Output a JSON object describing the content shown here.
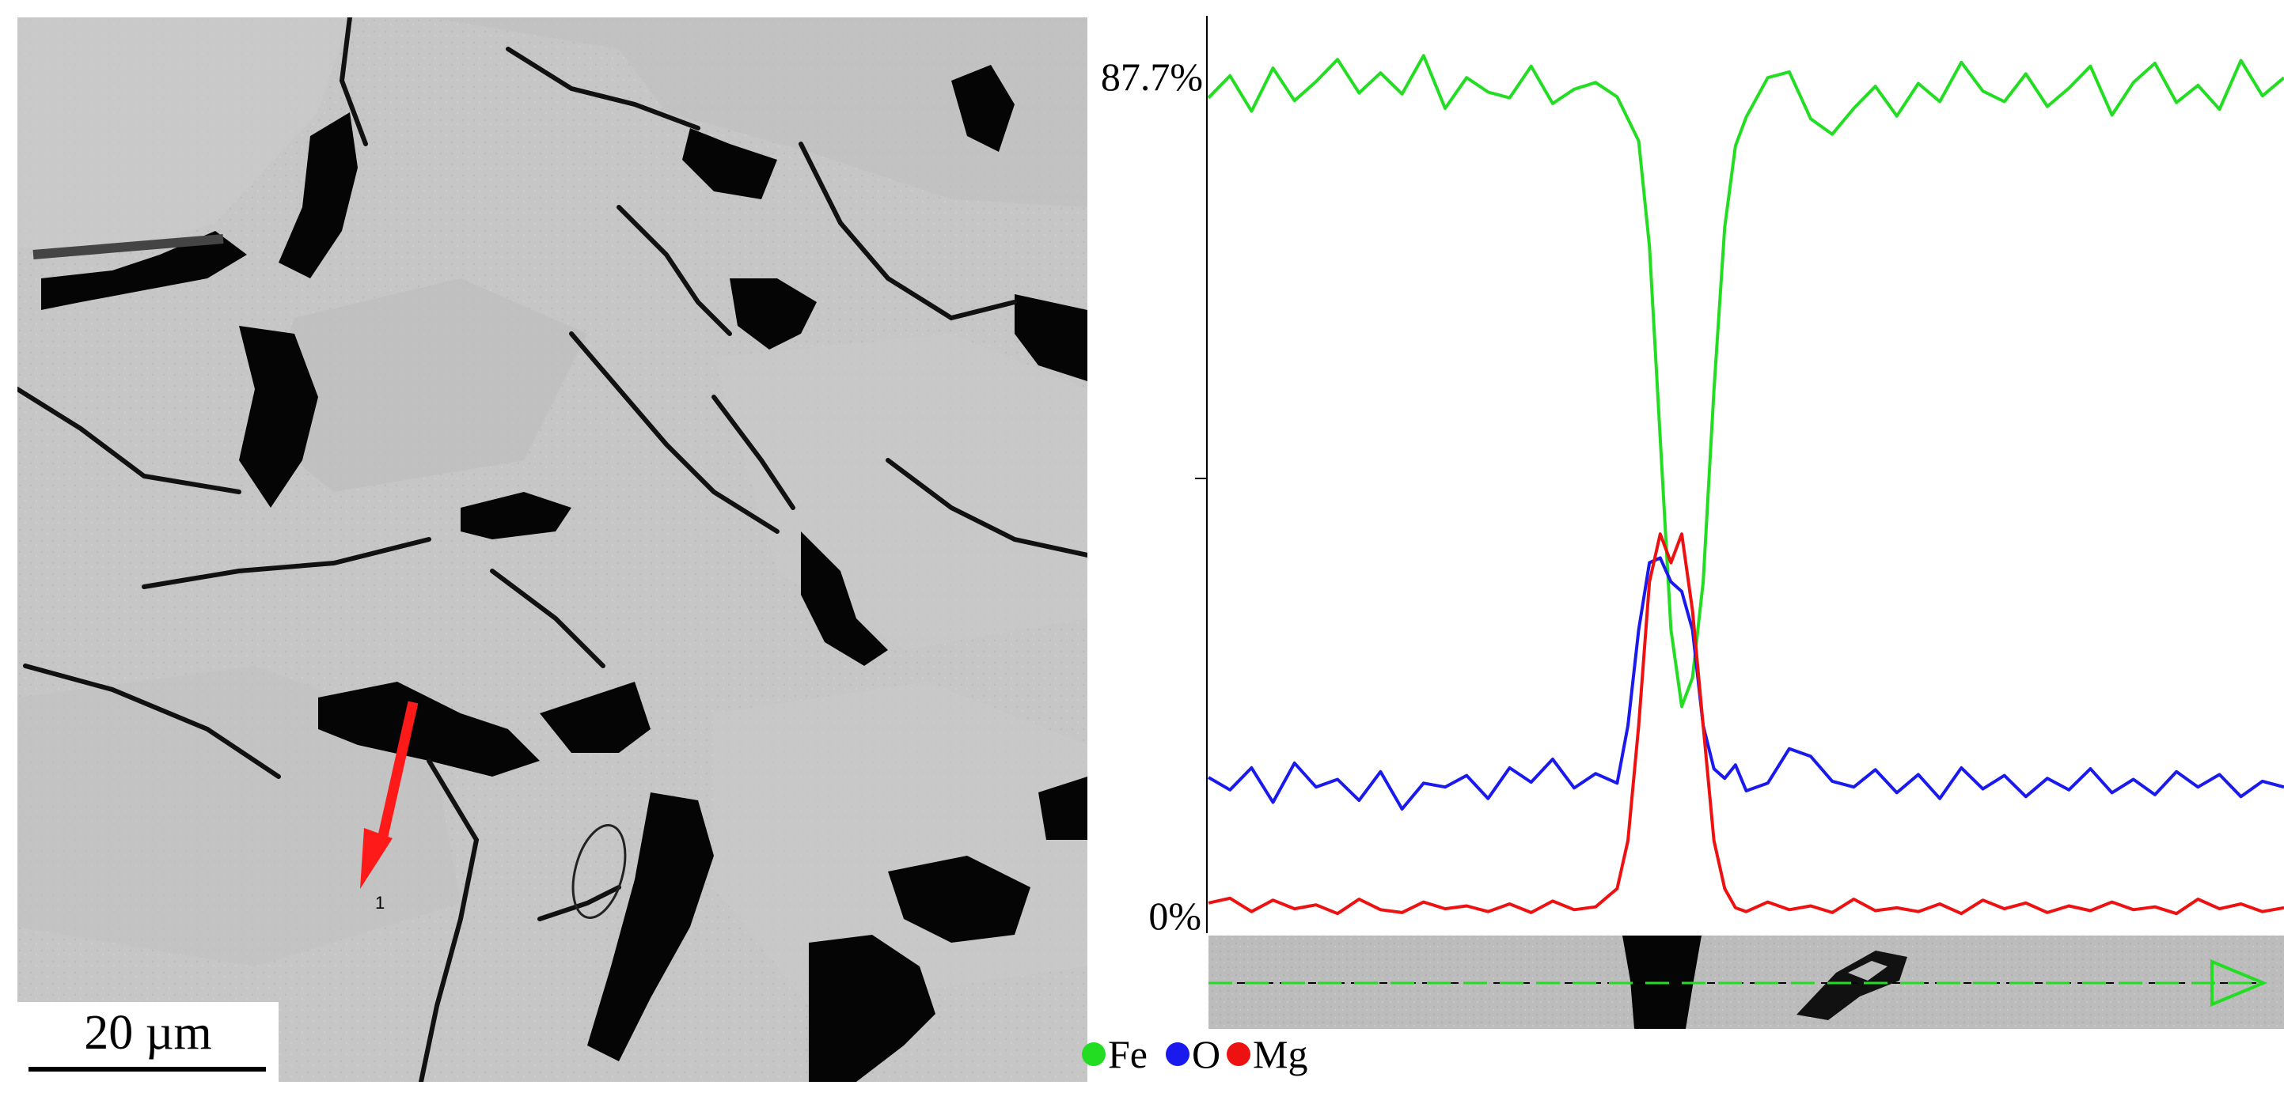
{
  "micrograph": {
    "scale_label": "20  µm",
    "point_marker": "1",
    "arrow_color": "#ff1a1a"
  },
  "chart_data": {
    "type": "line",
    "y_top_label": "87.7%",
    "y_bottom_label": "0%",
    "ylim": [
      0,
      87.7
    ],
    "xlim": [
      0,
      100
    ],
    "grid": false,
    "legend_position": "bottom-left",
    "series": [
      {
        "name": "Fe",
        "color": "#22dd22",
        "x": [
          0,
          2,
          4,
          6,
          8,
          10,
          12,
          14,
          16,
          18,
          20,
          22,
          24,
          26,
          28,
          30,
          32,
          34,
          36,
          38,
          40,
          41,
          42,
          43,
          44,
          45,
          46,
          47,
          48,
          49,
          50,
          52,
          54,
          56,
          58,
          60,
          62,
          64,
          66,
          68,
          70,
          72,
          74,
          76,
          78,
          80,
          82,
          84,
          86,
          88,
          90,
          92,
          94,
          96,
          98,
          100
        ],
        "y": [
          85.5,
          87.8,
          84.1,
          88.6,
          85.2,
          87.2,
          89.5,
          86.0,
          88.1,
          85.9,
          89.9,
          84.4,
          87.6,
          86.1,
          85.5,
          88.8,
          84.9,
          86.4,
          87.1,
          85.6,
          81.0,
          70.0,
          50.0,
          30.0,
          22.0,
          25.0,
          35.0,
          55.0,
          72.0,
          80.5,
          83.5,
          87.6,
          88.2,
          83.3,
          81.7,
          84.4,
          86.7,
          83.6,
          87.0,
          85.1,
          89.2,
          86.2,
          85.1,
          88.0,
          84.6,
          86.5,
          88.8,
          83.7,
          87.1,
          89.1,
          85.0,
          86.8,
          84.3,
          89.4,
          85.7,
          87.6
        ]
      },
      {
        "name": "O",
        "color": "#1a1aee",
        "x": [
          0,
          2,
          4,
          6,
          8,
          10,
          12,
          14,
          16,
          18,
          20,
          22,
          24,
          26,
          28,
          30,
          32,
          34,
          36,
          38,
          39,
          40,
          41,
          42,
          43,
          44,
          45,
          46,
          47,
          48,
          49,
          50,
          52,
          54,
          56,
          58,
          60,
          62,
          64,
          66,
          68,
          70,
          72,
          74,
          76,
          78,
          80,
          82,
          84,
          86,
          88,
          90,
          92,
          94,
          96,
          98,
          100
        ],
        "y": [
          14.6,
          13.3,
          15.6,
          12.0,
          16.1,
          13.6,
          14.4,
          12.2,
          15.2,
          11.3,
          14.0,
          13.6,
          14.8,
          12.4,
          15.6,
          14.1,
          16.5,
          13.5,
          15.0,
          14.0,
          20.0,
          30.0,
          37.0,
          37.5,
          35.0,
          34.0,
          30.0,
          20.0,
          15.5,
          14.5,
          15.9,
          13.2,
          14.0,
          17.6,
          16.8,
          14.2,
          13.6,
          15.4,
          13.0,
          14.9,
          12.4,
          15.6,
          13.4,
          14.8,
          12.6,
          14.5,
          13.3,
          15.5,
          13.0,
          14.4,
          12.8,
          15.2,
          13.6,
          14.9,
          12.6,
          14.2,
          13.6
        ]
      },
      {
        "name": "Mg",
        "color": "#ee1111",
        "x": [
          0,
          2,
          4,
          6,
          8,
          10,
          12,
          14,
          16,
          18,
          20,
          22,
          24,
          26,
          28,
          30,
          32,
          34,
          36,
          38,
          39,
          40,
          41,
          42,
          43,
          44,
          45,
          46,
          47,
          48,
          49,
          50,
          52,
          54,
          56,
          58,
          60,
          62,
          64,
          66,
          68,
          70,
          72,
          74,
          76,
          78,
          80,
          82,
          84,
          86,
          88,
          90,
          92,
          94,
          96,
          98,
          100
        ],
        "y": [
          1.5,
          2.0,
          0.6,
          1.8,
          0.9,
          1.3,
          0.4,
          1.9,
          0.8,
          0.5,
          1.6,
          0.9,
          1.2,
          0.6,
          1.4,
          0.5,
          1.7,
          0.8,
          1.1,
          3.0,
          8.0,
          20.0,
          35.0,
          40.0,
          37.0,
          40.0,
          32.0,
          20.0,
          8.0,
          3.0,
          1.0,
          0.6,
          1.6,
          0.8,
          1.2,
          0.5,
          1.9,
          0.7,
          1.0,
          0.6,
          1.4,
          0.4,
          1.8,
          0.9,
          1.5,
          0.5,
          1.2,
          0.7,
          1.6,
          0.8,
          1.1,
          0.4,
          1.9,
          0.9,
          1.4,
          0.6,
          1.0
        ]
      }
    ]
  }
}
